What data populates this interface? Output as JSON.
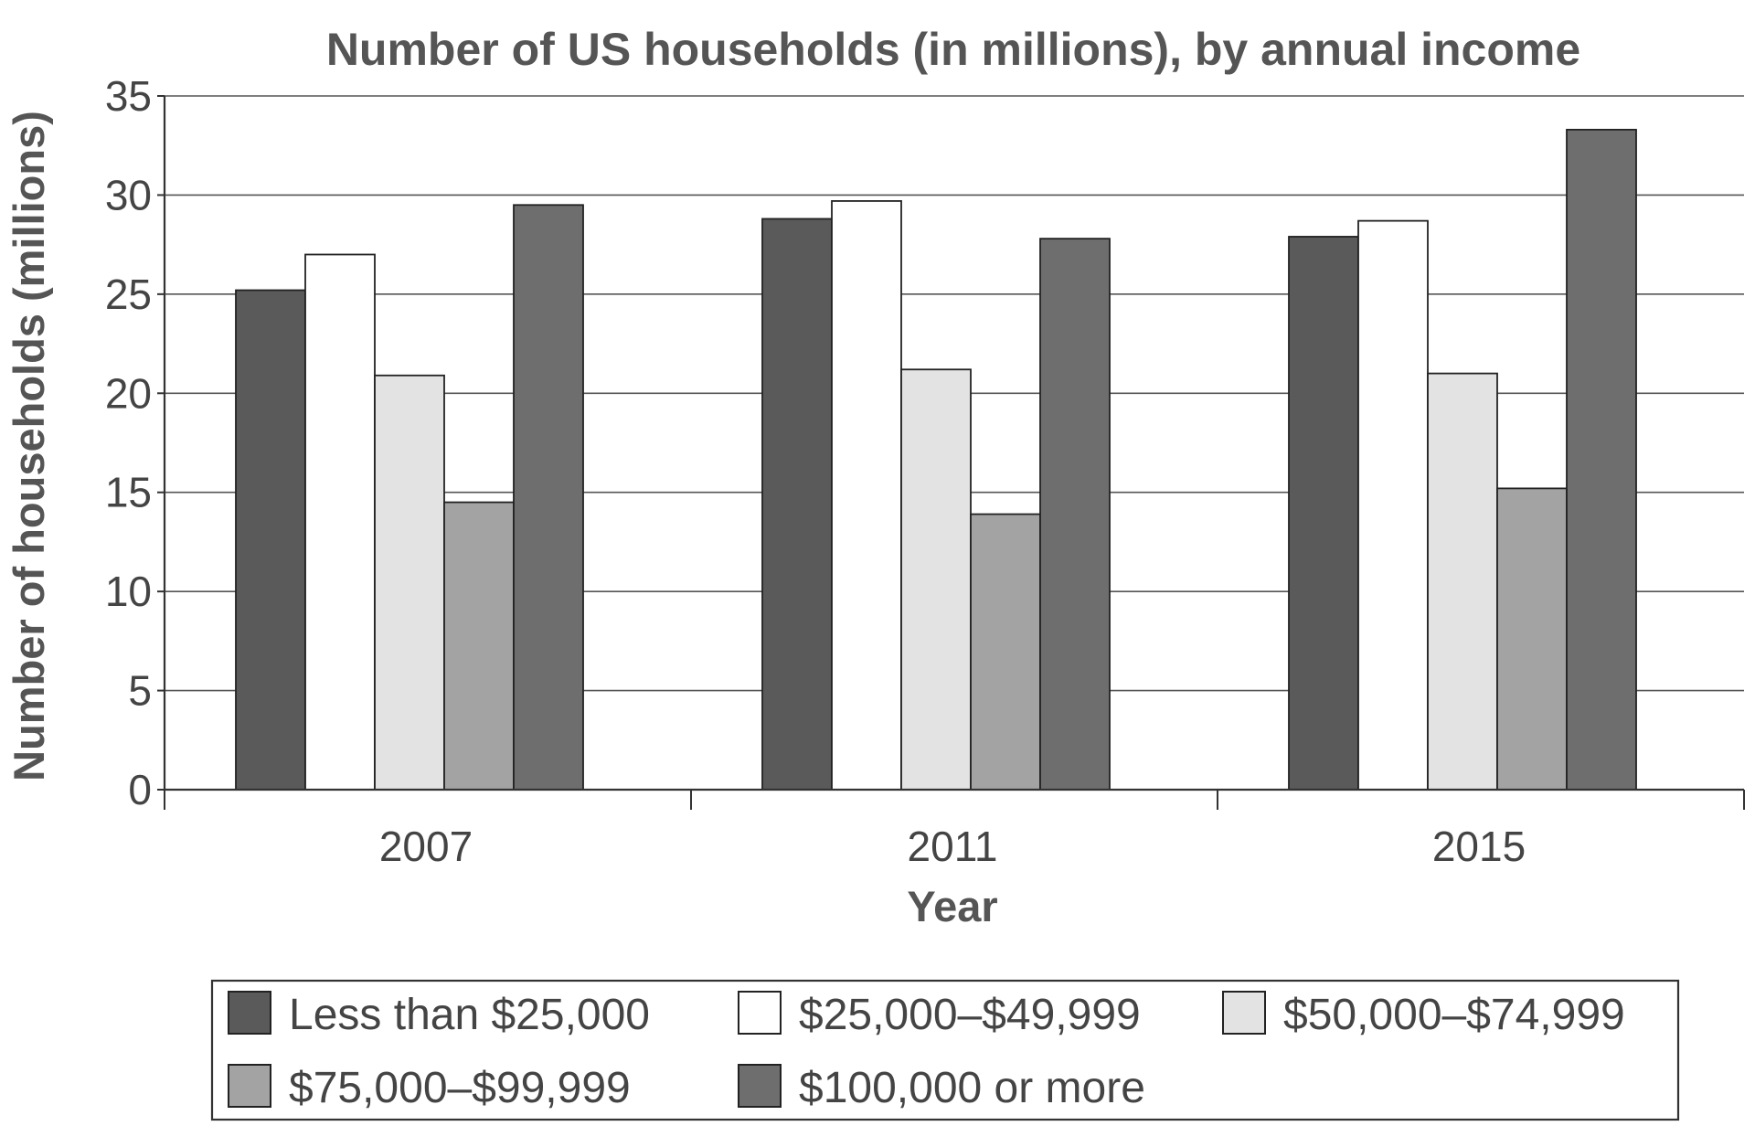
{
  "chart_data": {
    "type": "bar",
    "title": "Number of US households (in millions), by annual income",
    "xlabel": "Year",
    "ylabel": "Number of households (millions)",
    "categories": [
      "2007",
      "2011",
      "2015"
    ],
    "ylim": [
      0,
      35
    ],
    "yticks": [
      "0",
      "5",
      "10",
      "15",
      "20",
      "25",
      "30",
      "35"
    ],
    "grid": true,
    "legend_position": "bottom",
    "series": [
      {
        "name": "Less than $25,000",
        "values": [
          25.2,
          28.8,
          27.9
        ],
        "color": "#5a5a5a"
      },
      {
        "name": "$25,000–$49,999",
        "values": [
          27.0,
          29.7,
          28.7
        ],
        "color": "#ffffff"
      },
      {
        "name": "$50,000–$74,999",
        "values": [
          20.9,
          21.2,
          21.0
        ],
        "color": "#e3e3e3"
      },
      {
        "name": "$75,000–$99,999",
        "values": [
          14.5,
          13.9,
          15.2
        ],
        "color": "#a3a3a3"
      },
      {
        "name": "$100,000 or more",
        "values": [
          29.5,
          27.8,
          33.3
        ],
        "color": "#6e6e6e"
      }
    ]
  }
}
